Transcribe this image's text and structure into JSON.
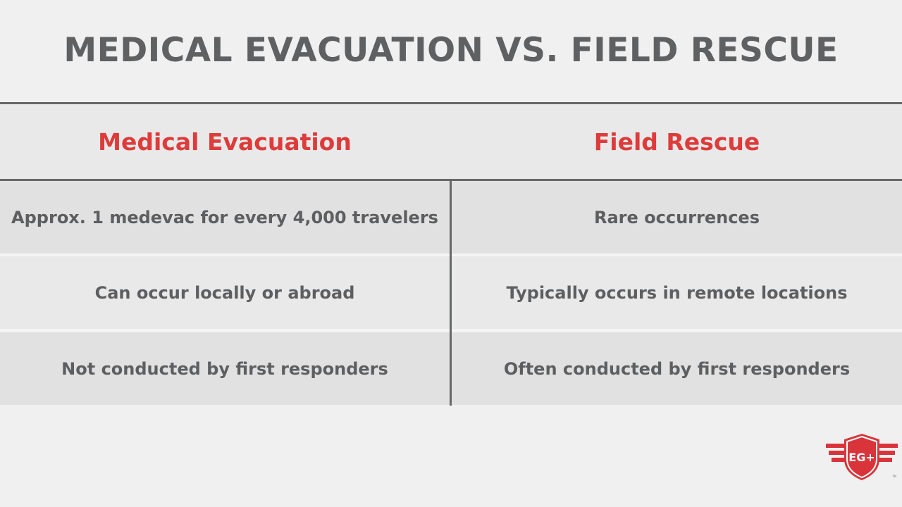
{
  "title": "MEDICAL EVACUATION VS. FIELD RESCUE",
  "columns": {
    "left": "Medical Evacuation",
    "right": "Field Rescue"
  },
  "rows": [
    {
      "left": "Approx. 1 medevac for every 4,000 travelers",
      "right": "Rare occurrences"
    },
    {
      "left": "Can occur locally or abroad",
      "right": "Typically occurs in remote locations"
    },
    {
      "left": "Not conducted by first responders",
      "right": "Often conducted by first responders"
    }
  ],
  "logo": {
    "text": "EG+",
    "trademark": "TM"
  },
  "colors": {
    "background": "#f0f0f0",
    "title_text": "#5f6062",
    "accent_red": "#de3b3b",
    "cell_text": "#5d5e60",
    "rule": "#666769"
  }
}
